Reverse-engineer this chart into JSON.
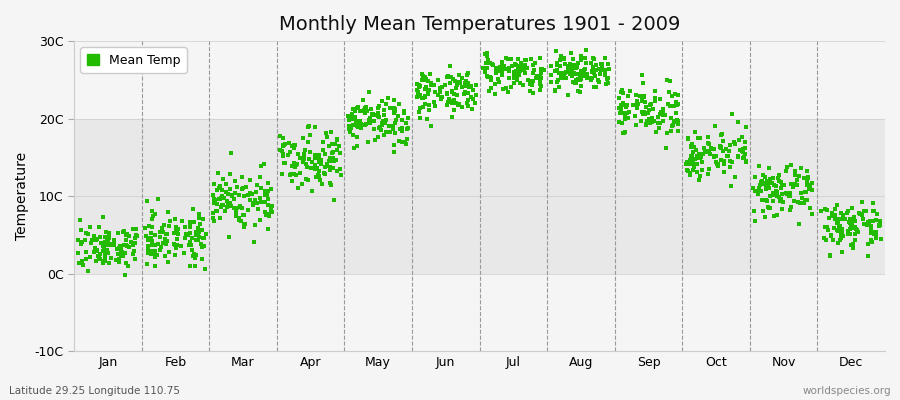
{
  "title": "Monthly Mean Temperatures 1901 - 2009",
  "ylabel": "Temperature",
  "xlabel_bottom_left": "Latitude 29.25 Longitude 110.75",
  "xlabel_bottom_right": "worldspecies.org",
  "legend_label": "Mean Temp",
  "dot_color": "#22bb00",
  "background_color": "#f5f5f5",
  "plot_bg_color": "#f5f5f5",
  "band_color": "#e8e8e8",
  "ylim": [
    -10,
    30
  ],
  "yticks": [
    -10,
    0,
    10,
    20,
    30
  ],
  "ytick_labels": [
    "-10C",
    "0C",
    "10C",
    "20C",
    "30C"
  ],
  "months": [
    "Jan",
    "Feb",
    "Mar",
    "Apr",
    "May",
    "Jun",
    "Jul",
    "Aug",
    "Sep",
    "Oct",
    "Nov",
    "Dec"
  ],
  "month_means": [
    3.5,
    4.8,
    9.5,
    15.0,
    19.5,
    23.5,
    26.0,
    26.0,
    21.0,
    15.5,
    10.5,
    6.0
  ],
  "month_stds": [
    1.4,
    1.7,
    2.0,
    1.8,
    1.6,
    1.4,
    1.2,
    1.3,
    1.5,
    1.5,
    1.5,
    1.4
  ],
  "num_years": 109,
  "dot_size": 5,
  "dot_alpha": 1.0,
  "title_fontsize": 14,
  "axis_fontsize": 10,
  "tick_fontsize": 9,
  "legend_fontsize": 9
}
